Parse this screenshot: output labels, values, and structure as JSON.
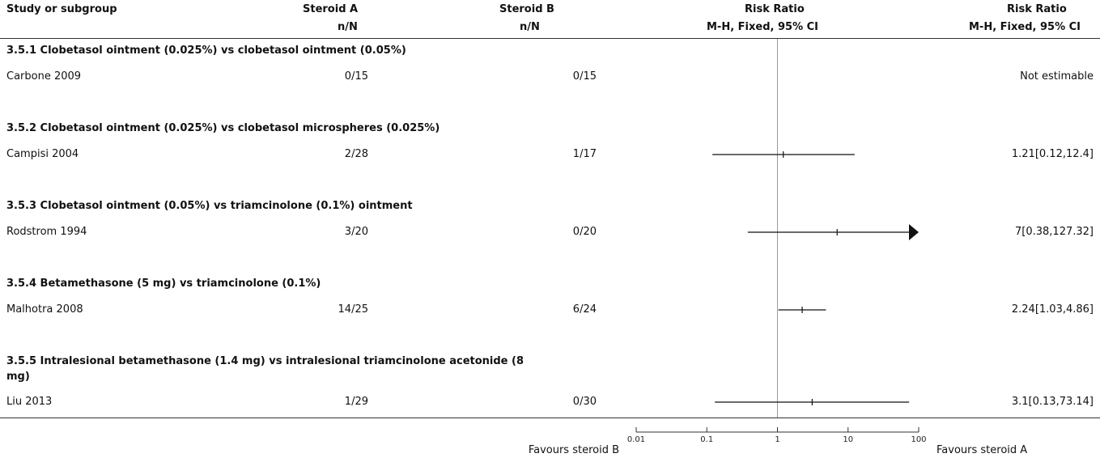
{
  "header": {
    "col_study": "Study or subgroup",
    "col_a": "Steroid A",
    "col_a_sub": "n/N",
    "col_b": "Steroid B",
    "col_b_sub": "n/N",
    "col_rr": "Risk Ratio",
    "col_rr_sub": "M-H, Fixed, 95% CI",
    "col_rr2": "Risk Ratio",
    "col_rr2_sub": "M-H, Fixed, 95% CI"
  },
  "footer": {
    "favours_left": "Favours steroid B",
    "favours_right": "Favours steroid A"
  },
  "chart_data": {
    "type": "forest",
    "scale": "log",
    "xlim": [
      0.01,
      100
    ],
    "ticks": [
      {
        "value": 0.01,
        "label": "0.01"
      },
      {
        "value": 0.1,
        "label": "0.1"
      },
      {
        "value": 1,
        "label": "1"
      },
      {
        "value": 10,
        "label": "10"
      },
      {
        "value": 100,
        "label": "100"
      }
    ],
    "groups": [
      {
        "title": "3.5.1 Clobetasol ointment (0.025%) vs clobetasol ointment (0.05%)",
        "studies": [
          {
            "study": "Carbone 2009",
            "a": "0/15",
            "b": "0/15",
            "rr": null,
            "lo": null,
            "hi": null,
            "ci_text": "Not estimable"
          }
        ]
      },
      {
        "title": "3.5.2 Clobetasol ointment (0.025%) vs clobetasol microspheres (0.025%)",
        "studies": [
          {
            "study": "Campisi 2004",
            "a": "2/28",
            "b": "1/17",
            "rr": 1.21,
            "lo": 0.12,
            "hi": 12.4,
            "ci_text": "1.21[0.12,12.4]"
          }
        ]
      },
      {
        "title": "3.5.3 Clobetasol ointment (0.05%) vs triamcinolone (0.1%) ointment",
        "studies": [
          {
            "study": "Rodstrom 1994",
            "a": "3/20",
            "b": "0/20",
            "rr": 7,
            "lo": 0.38,
            "hi": 127.32,
            "ci_text": "7[0.38,127.32]"
          }
        ]
      },
      {
        "title": "3.5.4 Betamethasone (5 mg) vs triamcinolone (0.1%)",
        "studies": [
          {
            "study": "Malhotra 2008",
            "a": "14/25",
            "b": "6/24",
            "rr": 2.24,
            "lo": 1.03,
            "hi": 4.86,
            "ci_text": "2.24[1.03,4.86]"
          }
        ]
      },
      {
        "title_line1": "3.5.5 Intralesional betamethasone (1.4 mg) vs intralesional triamcinolone acetonide (8",
        "title_line2": "mg)",
        "studies": [
          {
            "study": "Liu 2013",
            "a": "1/29",
            "b": "0/30",
            "rr": 3.1,
            "lo": 0.13,
            "hi": 73.14,
            "ci_text": "3.1[0.13,73.14]"
          }
        ]
      }
    ]
  }
}
